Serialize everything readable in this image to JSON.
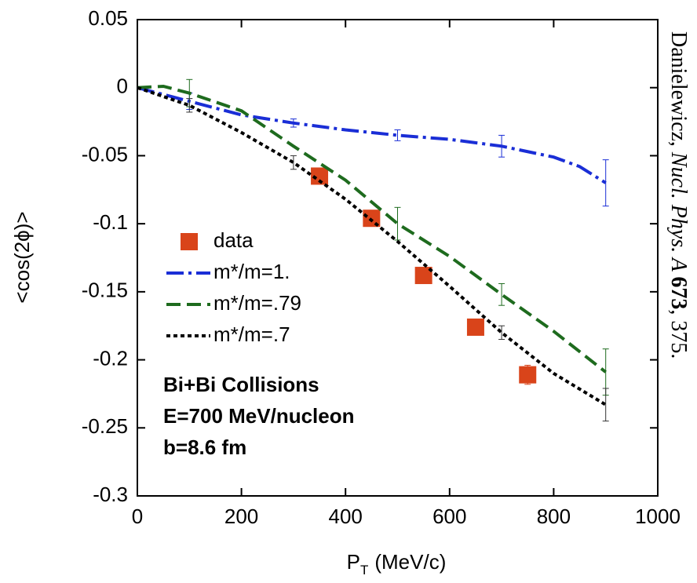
{
  "chart_data": {
    "type": "line",
    "x_label": {
      "main": "P",
      "sub": "T",
      "unit": "(MeV/c)"
    },
    "y_label": "<cos(2ϕ)>",
    "xlim": [
      0,
      1000
    ],
    "xticks": [
      0,
      200,
      400,
      600,
      800,
      1000
    ],
    "ylim": [
      -0.3,
      0.05
    ],
    "yticks": [
      0.05,
      0,
      -0.05,
      -0.1,
      -0.15,
      -0.2,
      -0.25,
      -0.3
    ],
    "series": [
      {
        "name": "data",
        "marker": "square",
        "color": "#d9441a",
        "label_color": "#d9441a",
        "x": [
          350,
          450,
          550,
          650,
          750
        ],
        "values": [
          -0.065,
          -0.096,
          -0.138,
          -0.176,
          -0.211
        ],
        "errors": [
          null,
          null,
          null,
          null,
          0.007
        ]
      },
      {
        "name": "m*/m=1.",
        "dash": "dash-dot",
        "color": "#1a2ed6",
        "label_color": "#1a2ed6",
        "x": [
          0,
          100,
          200,
          300,
          400,
          500,
          600,
          700,
          800,
          850,
          900
        ],
        "values": [
          0,
          -0.01,
          -0.02,
          -0.026,
          -0.031,
          -0.035,
          -0.038,
          -0.043,
          -0.051,
          -0.058,
          -0.07
        ],
        "errors": [
          null,
          0.006,
          null,
          0.003,
          null,
          0.004,
          null,
          0.008,
          null,
          null,
          0.017
        ]
      },
      {
        "name": "m*/m=.79",
        "dash": "dash",
        "color": "#1e6b1e",
        "label_color": "#e060c0",
        "x": [
          0,
          50,
          100,
          200,
          300,
          400,
          500,
          600,
          700,
          800,
          900
        ],
        "values": [
          0,
          0.001,
          -0.004,
          -0.017,
          -0.043,
          -0.068,
          -0.1,
          -0.124,
          -0.152,
          -0.179,
          -0.209
        ],
        "errors": [
          null,
          null,
          0.01,
          null,
          null,
          null,
          0.012,
          null,
          0.008,
          null,
          0.017
        ]
      },
      {
        "name": "m*/m=.7",
        "dash": "dot",
        "color": "#000000",
        "label_color": "#000000",
        "x": [
          0,
          100,
          200,
          300,
          400,
          500,
          600,
          700,
          800,
          900
        ],
        "values": [
          0,
          -0.013,
          -0.033,
          -0.055,
          -0.082,
          -0.113,
          -0.146,
          -0.18,
          -0.21,
          -0.233
        ],
        "errors": [
          null,
          0.005,
          null,
          0.005,
          null,
          null,
          null,
          0.005,
          null,
          0.012
        ]
      }
    ],
    "annotations": [
      "Bi+Bi Collisions",
      "E=700 MeV/nucleon",
      "b=8.6 fm"
    ],
    "citation": {
      "author": "Danielewicz, ",
      "journal": "Nucl. Phys. A ",
      "volume": "673",
      "pages": ", 375."
    }
  }
}
